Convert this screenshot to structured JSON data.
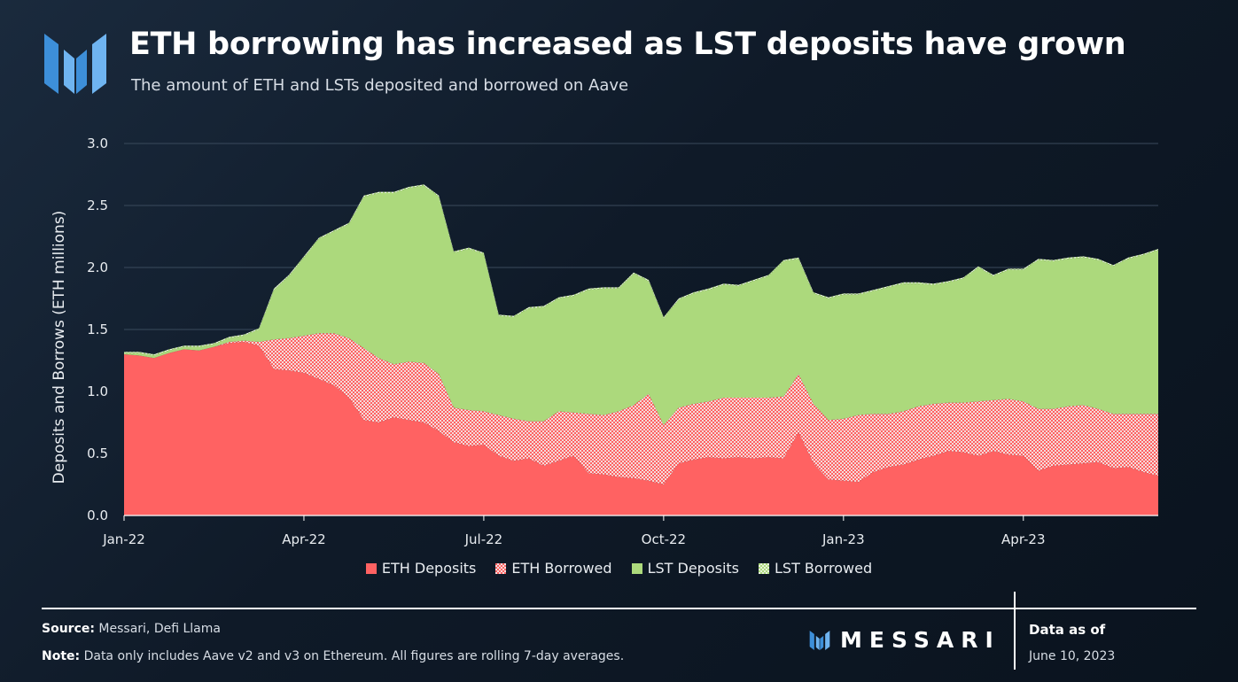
{
  "title": "ETH borrowing has increased as LST deposits have grown",
  "subtitle": "The amount of ETH and LSTs deposited and borrowed on Aave",
  "footer": {
    "source_label": "Source:",
    "source_text": "Messari, Defi Llama",
    "note_label": "Note:",
    "note_text": "Data only includes Aave v2 and v3 on Ethereum. All figures are rolling 7-day averages.",
    "brand": "MESSARI",
    "asof_label": "Data as of",
    "asof_date": "June 10, 2023"
  },
  "colors": {
    "eth_deposits": "#ff6262",
    "eth_borrowed": "#ff6262",
    "lst_deposits": "#acd97c",
    "lst_borrowed": "#acd97c",
    "grid": "#3a4a5c",
    "logo": "#3d8fd9"
  },
  "chart_data": {
    "type": "area",
    "stacked": true,
    "ylabel": "Deposits and Borrows (ETH millions)",
    "xlabel": "",
    "ylim": [
      0,
      3.0
    ],
    "yticks": [
      "0.0",
      "0.5",
      "1.0",
      "1.5",
      "2.0",
      "2.5",
      "3.0"
    ],
    "xticks": [
      "Jan-22",
      "Apr-22",
      "Jul-22",
      "Oct-22",
      "Jan-23",
      "Apr-23"
    ],
    "xtick_positions": [
      0,
      3,
      6,
      9,
      12,
      15
    ],
    "x": [
      0,
      0.25,
      0.5,
      0.75,
      1,
      1.25,
      1.5,
      1.75,
      2,
      2.25,
      2.5,
      2.75,
      3,
      3.25,
      3.5,
      3.75,
      4,
      4.25,
      4.5,
      4.75,
      5,
      5.25,
      5.5,
      5.75,
      6,
      6.25,
      6.5,
      6.75,
      7,
      7.25,
      7.5,
      7.75,
      8,
      8.25,
      8.5,
      8.75,
      9,
      9.25,
      9.5,
      9.75,
      10,
      10.25,
      10.5,
      10.75,
      11,
      11.25,
      11.5,
      11.75,
      12,
      12.25,
      12.5,
      12.75,
      13,
      13.25,
      13.5,
      13.75,
      14,
      14.25,
      14.5,
      14.75,
      15,
      15.25,
      15.5,
      15.75,
      16,
      16.25,
      16.5,
      16.75,
      17,
      17.25
    ],
    "legend": [
      "ETH Deposits",
      "ETH Borrowed",
      "LST Deposits",
      "LST Borrowed"
    ],
    "series": [
      {
        "name": "ETH Deposits",
        "values": [
          1.3,
          1.29,
          1.27,
          1.31,
          1.34,
          1.33,
          1.36,
          1.39,
          1.4,
          1.37,
          1.18,
          1.17,
          1.15,
          1.1,
          1.05,
          0.95,
          0.77,
          0.75,
          0.79,
          0.77,
          0.75,
          0.68,
          0.59,
          0.56,
          0.57,
          0.48,
          0.44,
          0.46,
          0.4,
          0.44,
          0.48,
          0.34,
          0.33,
          0.31,
          0.3,
          0.28,
          0.25,
          0.42,
          0.45,
          0.47,
          0.46,
          0.47,
          0.46,
          0.47,
          0.46,
          0.67,
          0.42,
          0.29,
          0.28,
          0.27,
          0.35,
          0.39,
          0.41,
          0.45,
          0.48,
          0.52,
          0.51,
          0.48,
          0.52,
          0.49,
          0.48,
          0.36,
          0.4,
          0.41,
          0.42,
          0.43,
          0.38,
          0.39,
          0.35,
          0.32
        ]
      },
      {
        "name": "ETH Borrowed",
        "values": [
          0.0,
          0.0,
          0.0,
          0.0,
          0.0,
          0.0,
          0.0,
          0.01,
          0.01,
          0.03,
          0.24,
          0.26,
          0.3,
          0.37,
          0.42,
          0.48,
          0.58,
          0.52,
          0.43,
          0.47,
          0.48,
          0.46,
          0.28,
          0.29,
          0.27,
          0.33,
          0.34,
          0.3,
          0.36,
          0.4,
          0.35,
          0.48,
          0.48,
          0.53,
          0.59,
          0.7,
          0.48,
          0.45,
          0.45,
          0.45,
          0.49,
          0.48,
          0.49,
          0.48,
          0.5,
          0.47,
          0.48,
          0.48,
          0.5,
          0.54,
          0.47,
          0.43,
          0.43,
          0.43,
          0.42,
          0.39,
          0.4,
          0.44,
          0.41,
          0.45,
          0.44,
          0.5,
          0.46,
          0.47,
          0.47,
          0.43,
          0.44,
          0.43,
          0.47,
          0.5
        ]
      },
      {
        "name": "LST Deposits",
        "values": [
          0.01,
          0.02,
          0.02,
          0.02,
          0.02,
          0.03,
          0.02,
          0.03,
          0.04,
          0.1,
          0.4,
          0.5,
          0.63,
          0.76,
          0.82,
          0.92,
          1.22,
          1.33,
          1.38,
          1.4,
          1.43,
          1.43,
          1.25,
          1.3,
          1.27,
          0.8,
          0.82,
          0.91,
          0.92,
          0.91,
          0.94,
          1.0,
          1.02,
          0.99,
          1.06,
          0.91,
          0.86,
          0.87,
          0.89,
          0.9,
          0.91,
          0.9,
          0.94,
          0.98,
          1.09,
          0.93,
          0.89,
          0.98,
          1.0,
          0.97,
          0.99,
          1.02,
          1.03,
          0.99,
          0.96,
          0.97,
          1.0,
          1.08,
          1.0,
          1.04,
          1.06,
          1.2,
          1.19,
          1.19,
          1.19,
          1.2,
          1.19,
          1.25,
          1.28,
          1.32
        ]
      },
      {
        "name": "LST Borrowed",
        "values": [
          0.01,
          0.01,
          0.01,
          0.01,
          0.01,
          0.01,
          0.01,
          0.01,
          0.01,
          0.01,
          0.01,
          0.01,
          0.01,
          0.01,
          0.01,
          0.01,
          0.01,
          0.01,
          0.01,
          0.01,
          0.01,
          0.01,
          0.01,
          0.01,
          0.01,
          0.01,
          0.01,
          0.01,
          0.01,
          0.01,
          0.01,
          0.01,
          0.01,
          0.01,
          0.01,
          0.01,
          0.01,
          0.01,
          0.01,
          0.01,
          0.01,
          0.01,
          0.01,
          0.01,
          0.01,
          0.01,
          0.01,
          0.01,
          0.01,
          0.01,
          0.01,
          0.01,
          0.01,
          0.01,
          0.01,
          0.01,
          0.01,
          0.01,
          0.01,
          0.01,
          0.01,
          0.01,
          0.01,
          0.01,
          0.01,
          0.01,
          0.01,
          0.01,
          0.01,
          0.01
        ]
      }
    ]
  }
}
